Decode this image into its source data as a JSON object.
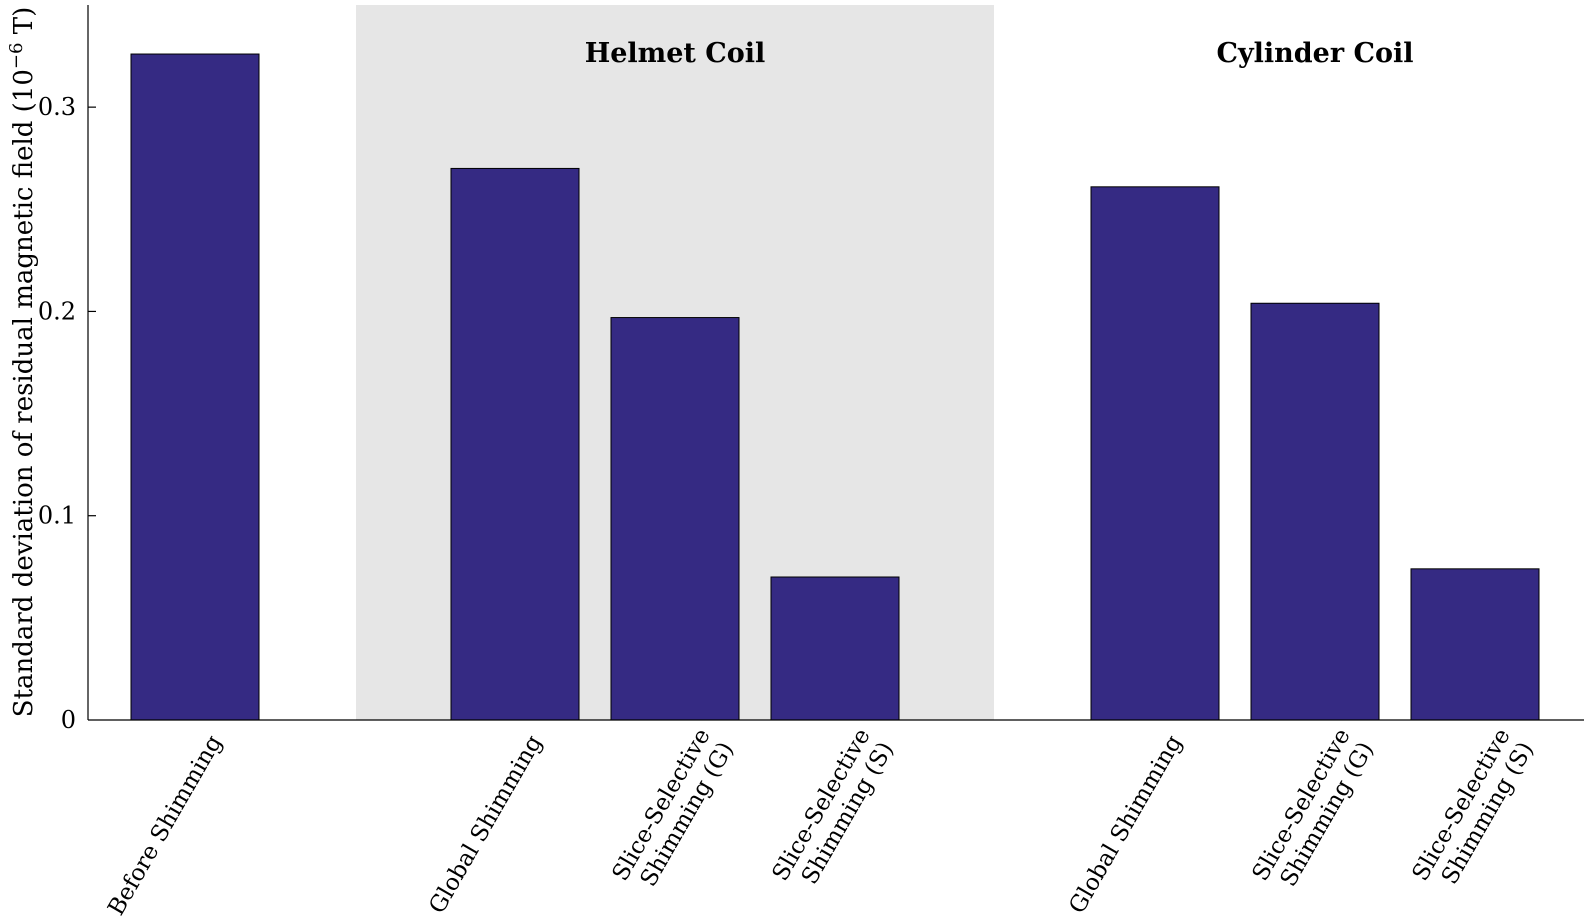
{
  "chart_data": {
    "type": "bar",
    "title": "",
    "xlabel": "",
    "ylabel": "Standard deviation of residual magnetic field (10",
    "ylabel_exponent": "−6",
    "ylabel_suffix": " T)",
    "ylim": [
      0,
      0.35
    ],
    "yticks": [
      "0",
      "0.1",
      "0.2",
      "0.3"
    ],
    "ytick_values": [
      0,
      0.1,
      0.2,
      0.3
    ],
    "bar_color": "#352a83",
    "shade_color": "#e6e6e6",
    "groups": [
      {
        "title": "",
        "shaded": false,
        "start": 0,
        "end": 0
      },
      {
        "title": "Helmet Coil",
        "shaded": true,
        "start": 1,
        "end": 3
      },
      {
        "title": "Cylinder Coil",
        "shaded": false,
        "start": 4,
        "end": 6
      }
    ],
    "categories": [
      {
        "line1": "Before Shimming",
        "line2": ""
      },
      {
        "line1": "Global Shimming",
        "line2": ""
      },
      {
        "line1": "Slice-Selective",
        "line2": "Shimming (G)"
      },
      {
        "line1": "Slice-Selective",
        "line2": "Shimming (S)"
      },
      {
        "line1": "Global Shimming",
        "line2": ""
      },
      {
        "line1": "Slice-Selective",
        "line2": "Shimming (G)"
      },
      {
        "line1": "Slice-Selective",
        "line2": "Shimming (S)"
      }
    ],
    "values": [
      0.326,
      0.27,
      0.197,
      0.07,
      0.261,
      0.204,
      0.074
    ]
  }
}
